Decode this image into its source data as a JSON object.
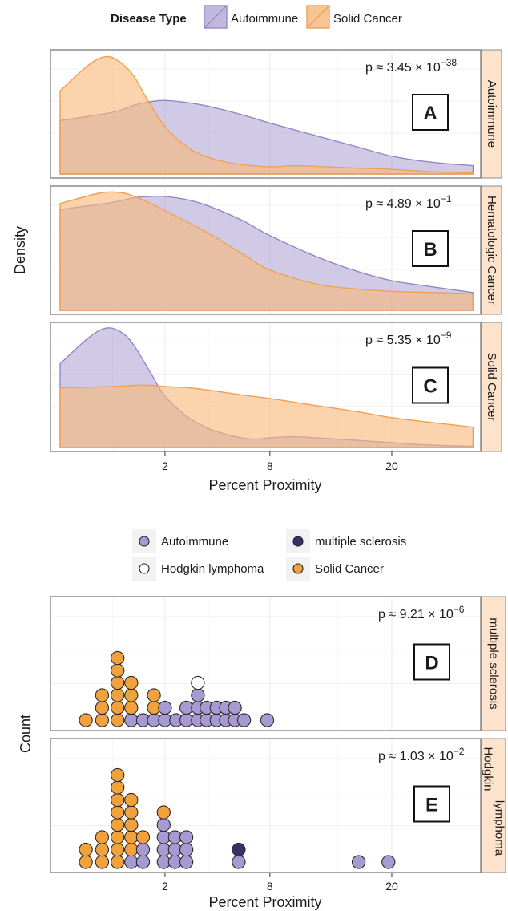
{
  "chart_data": [
    {
      "type": "area",
      "id": "density",
      "legend": {
        "title": "Disease Type",
        "entries": [
          {
            "name": "Autoimmune",
            "color": "#b3aad6"
          },
          {
            "name": "Solid Cancer",
            "color": "#f8b87a"
          }
        ],
        "placement": "top"
      },
      "xlabel": "Percent Proximity",
      "ylabel": "Density",
      "x_scale": "sqrt",
      "x_ticks": [
        2,
        8,
        20
      ],
      "x_range": [
        0,
        31
      ],
      "grid": true,
      "panels": [
        {
          "letter": "A",
          "strip": "Autoimmune",
          "p_label": "p ≈ 3.45 × 10",
          "p_exp": "−38",
          "y_max": 1.0,
          "series": [
            {
              "name": "Autoimmune",
              "x": [
                0,
                0.5,
                1,
                1.5,
                2,
                3,
                4,
                6,
                8,
                12,
                16,
                20,
                25,
                31
              ],
              "y": [
                0.45,
                0.52,
                0.58,
                0.61,
                0.62,
                0.6,
                0.57,
                0.5,
                0.43,
                0.32,
                0.23,
                0.15,
                0.1,
                0.07
              ]
            },
            {
              "name": "Solid Cancer",
              "x": [
                0,
                0.15,
                0.4,
                0.7,
                1,
                1.4,
                2,
                3,
                4,
                5,
                6,
                8,
                10,
                13,
                16,
                20,
                25,
                31
              ],
              "y": [
                0.7,
                0.92,
                0.99,
                0.93,
                0.82,
                0.62,
                0.4,
                0.22,
                0.14,
                0.1,
                0.08,
                0.06,
                0.07,
                0.06,
                0.05,
                0.04,
                0.02,
                0.01
              ]
            }
          ]
        },
        {
          "letter": "B",
          "strip": "Hematologic Cancer",
          "p_label": "p ≈ 4.89 × 10",
          "p_exp": "−1",
          "y_max": 1.0,
          "series": [
            {
              "name": "Autoimmune",
              "x": [
                0,
                0.5,
                1,
                1.5,
                2,
                3,
                4,
                6,
                8,
                12,
                16,
                20,
                25,
                31
              ],
              "y": [
                0.85,
                0.91,
                0.95,
                0.96,
                0.96,
                0.93,
                0.88,
                0.76,
                0.63,
                0.45,
                0.33,
                0.25,
                0.2,
                0.15
              ]
            },
            {
              "name": "Solid Cancer",
              "x": [
                0,
                0.3,
                0.7,
                1,
                1.5,
                2,
                3,
                4,
                6,
                8,
                12,
                16,
                20,
                25,
                31
              ],
              "y": [
                0.9,
                0.99,
                0.99,
                0.96,
                0.9,
                0.84,
                0.74,
                0.65,
                0.48,
                0.34,
                0.22,
                0.18,
                0.16,
                0.15,
                0.14
              ]
            }
          ]
        },
        {
          "letter": "C",
          "strip": "Solid Cancer",
          "p_label": "p ≈ 5.35 × 10",
          "p_exp": "−9",
          "y_max": 1.0,
          "series": [
            {
              "name": "Autoimmune",
              "x": [
                0,
                0.15,
                0.4,
                0.7,
                1,
                1.5,
                2,
                3,
                4,
                5,
                6,
                7,
                8,
                10,
                12,
                16,
                20,
                25,
                31
              ],
              "y": [
                0.7,
                0.92,
                1.0,
                0.96,
                0.85,
                0.62,
                0.43,
                0.25,
                0.16,
                0.11,
                0.08,
                0.07,
                0.08,
                0.09,
                0.08,
                0.06,
                0.04,
                0.02,
                0.01
              ]
            },
            {
              "name": "Solid Cancer",
              "x": [
                0,
                0.5,
                1,
                1.5,
                2,
                3,
                4,
                6,
                8,
                12,
                16,
                20,
                25,
                31
              ],
              "y": [
                0.5,
                0.51,
                0.52,
                0.52,
                0.51,
                0.5,
                0.48,
                0.44,
                0.41,
                0.35,
                0.3,
                0.25,
                0.21,
                0.17
              ]
            }
          ]
        }
      ]
    },
    {
      "type": "scatter",
      "id": "dotplot",
      "legend": {
        "entries": [
          {
            "name": "Autoimmune",
            "color": "#a79ad3"
          },
          {
            "name": "multiple sclerosis",
            "color": "#3b2f6a"
          },
          {
            "name": "Hodgkin lymphoma",
            "color": "#ffffff"
          },
          {
            "name": "Solid Cancer",
            "color": "#f2a23c"
          }
        ],
        "placement": "top"
      },
      "xlabel": "Percent Proximity",
      "ylabel": "Count",
      "x_scale": "sqrt",
      "x_ticks": [
        2,
        8,
        20
      ],
      "x_range": [
        0,
        31
      ],
      "grid": true,
      "panels": [
        {
          "letter": "D",
          "strip": "multiple sclerosis",
          "p_label": "p ≈ 9.21 × 10",
          "p_exp": "−6",
          "stacks": [
            {
              "x": 0.12,
              "dots": [
                "Solid Cancer"
              ]
            },
            {
              "x": 0.32,
              "dots": [
                "Solid Cancer",
                "Solid Cancer",
                "Solid Cancer"
              ]
            },
            {
              "x": 0.6,
              "dots": [
                "Solid Cancer",
                "Solid Cancer",
                "Solid Cancer",
                "Solid Cancer",
                "Solid Cancer",
                "Solid Cancer"
              ]
            },
            {
              "x": 0.92,
              "dots": [
                "Autoimmune",
                "Solid Cancer",
                "Solid Cancer",
                "Solid Cancer"
              ]
            },
            {
              "x": 1.25,
              "dots": [
                "Autoimmune"
              ]
            },
            {
              "x": 1.6,
              "dots": [
                "Autoimmune",
                "Solid Cancer",
                "Solid Cancer"
              ]
            },
            {
              "x": 2.0,
              "dots": [
                "Autoimmune",
                "Autoimmune"
              ]
            },
            {
              "x": 2.45,
              "dots": [
                "Autoimmune"
              ]
            },
            {
              "x": 2.9,
              "dots": [
                "Autoimmune",
                "Autoimmune"
              ]
            },
            {
              "x": 3.45,
              "dots": [
                "Autoimmune",
                "Autoimmune",
                "Autoimmune",
                "Hodgkin lymphoma"
              ]
            },
            {
              "x": 3.9,
              "dots": [
                "Autoimmune",
                "Autoimmune"
              ]
            },
            {
              "x": 4.45,
              "dots": [
                "Autoimmune",
                "Autoimmune"
              ]
            },
            {
              "x": 5.0,
              "dots": [
                "Autoimmune",
                "Autoimmune"
              ]
            },
            {
              "x": 5.55,
              "dots": [
                "Autoimmune",
                "Autoimmune"
              ]
            },
            {
              "x": 6.15,
              "dots": [
                "Autoimmune"
              ]
            },
            {
              "x": 7.8,
              "dots": [
                "Autoimmune"
              ]
            }
          ]
        },
        {
          "letter": "E",
          "strip": "Hodgkin lymphoma",
          "p_label": "p ≈ 1.03 × 10",
          "p_exp": "−2",
          "stacks": [
            {
              "x": 0.12,
              "dots": [
                "Solid Cancer",
                "Solid Cancer"
              ]
            },
            {
              "x": 0.32,
              "dots": [
                "Solid Cancer",
                "Solid Cancer",
                "Solid Cancer"
              ]
            },
            {
              "x": 0.6,
              "dots": [
                "Solid Cancer",
                "Solid Cancer",
                "Solid Cancer",
                "Solid Cancer",
                "Solid Cancer",
                "Solid Cancer",
                "Solid Cancer",
                "Solid Cancer"
              ]
            },
            {
              "x": 0.92,
              "dots": [
                "Autoimmune",
                "Solid Cancer",
                "Solid Cancer",
                "Solid Cancer",
                "Solid Cancer",
                "Solid Cancer"
              ]
            },
            {
              "x": 1.25,
              "dots": [
                "Autoimmune",
                "Autoimmune",
                "Solid Cancer"
              ]
            },
            {
              "x": 1.95,
              "dots": [
                "Autoimmune",
                "Autoimmune",
                "Autoimmune",
                "Autoimmune",
                "Solid Cancer"
              ]
            },
            {
              "x": 2.4,
              "dots": [
                "Autoimmune",
                "Autoimmune",
                "Autoimmune"
              ]
            },
            {
              "x": 2.9,
              "dots": [
                "Autoimmune",
                "Autoimmune",
                "Autoimmune"
              ]
            },
            {
              "x": 5.8,
              "dots": [
                "Autoimmune",
                "multiple sclerosis"
              ]
            },
            {
              "x": 16.2,
              "dots": [
                "Autoimmune"
              ]
            },
            {
              "x": 19.6,
              "dots": [
                "Autoimmune"
              ]
            }
          ]
        }
      ]
    }
  ]
}
